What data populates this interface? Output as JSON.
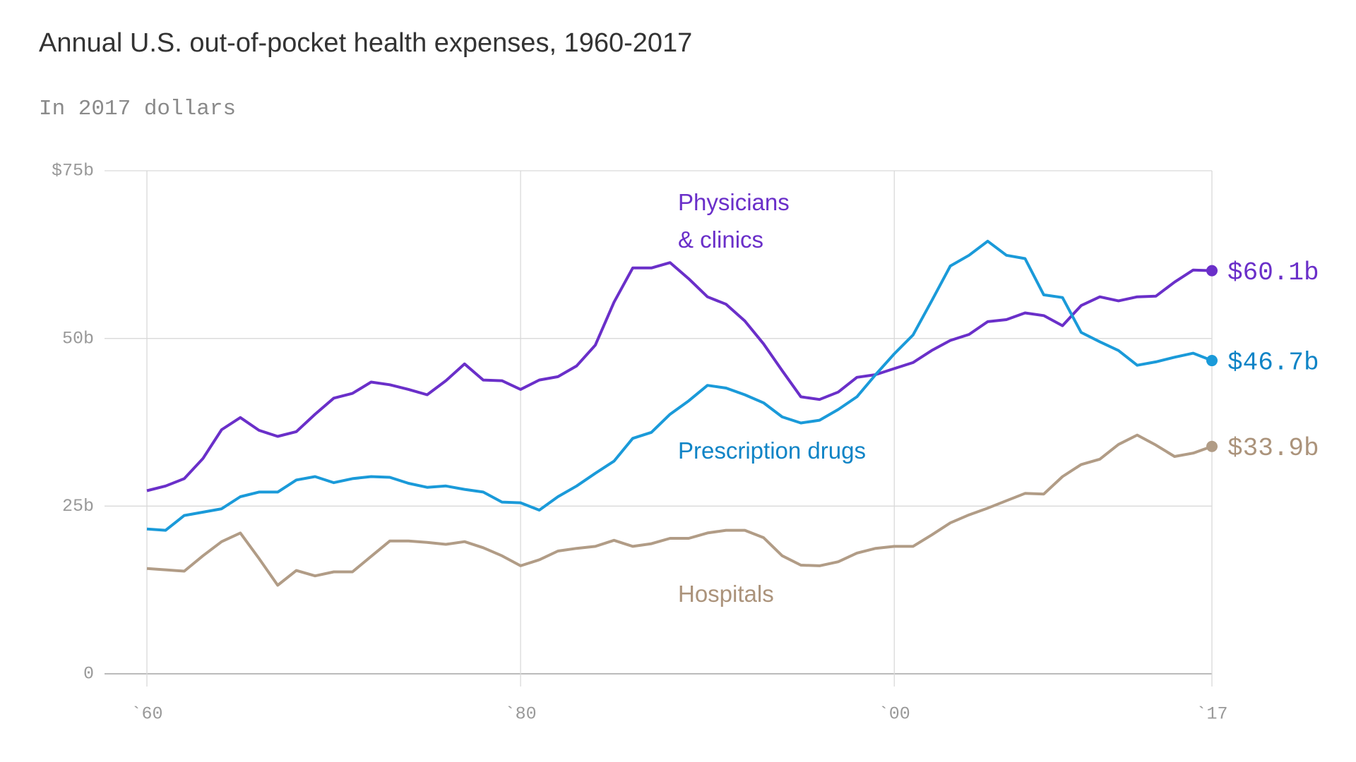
{
  "chart_data": {
    "type": "line",
    "title": "Annual U.S. out-of-pocket health expenses, 1960-2017",
    "subtitle": "In 2017 dollars",
    "x": [
      1960,
      1961,
      1962,
      1963,
      1964,
      1965,
      1966,
      1967,
      1968,
      1969,
      1970,
      1971,
      1972,
      1973,
      1974,
      1975,
      1976,
      1977,
      1978,
      1979,
      1980,
      1981,
      1982,
      1983,
      1984,
      1985,
      1986,
      1987,
      1988,
      1989,
      1990,
      1991,
      1992,
      1993,
      1994,
      1995,
      1996,
      1997,
      1998,
      1999,
      2000,
      2001,
      2002,
      2003,
      2004,
      2005,
      2006,
      2007,
      2008,
      2009,
      2010,
      2011,
      2012,
      2013,
      2014,
      2015,
      2016,
      2017
    ],
    "xlim": [
      1960,
      2017
    ],
    "xticks": [
      {
        "value": 1960,
        "label": "`60"
      },
      {
        "value": 1980,
        "label": "`80"
      },
      {
        "value": 2000,
        "label": "`00"
      },
      {
        "value": 2017,
        "label": "`17"
      }
    ],
    "ylim": [
      0,
      75
    ],
    "yticks": [
      0,
      {
        "value": 25,
        "label": "25b"
      },
      {
        "value": 50,
        "label": "50b"
      },
      {
        "value": 75,
        "label": "$75b"
      }
    ],
    "grid": true,
    "series": [
      {
        "name": "Physicians & clinics",
        "color": "#6a2fc9",
        "label_color": "#6a2fc9",
        "end_label": "$60.1b",
        "values": [
          27.3,
          28.0,
          29.1,
          32.1,
          36.4,
          38.2,
          36.3,
          35.4,
          36.1,
          38.7,
          41.1,
          41.8,
          43.5,
          43.1,
          42.4,
          41.6,
          43.7,
          46.2,
          43.8,
          43.7,
          42.4,
          43.8,
          44.3,
          45.9,
          49.0,
          55.4,
          60.5,
          60.5,
          61.3,
          58.9,
          56.2,
          55.1,
          52.6,
          49.2,
          45.2,
          41.3,
          40.9,
          42.0,
          44.2,
          44.6,
          45.5,
          46.4,
          48.2,
          49.7,
          50.6,
          52.5,
          52.8,
          53.8,
          53.4,
          51.9,
          54.9,
          56.2,
          55.6,
          56.2,
          56.3,
          58.4,
          60.2,
          60.1
        ]
      },
      {
        "name": "Prescription drugs",
        "color": "#1a9ad9",
        "label_color": "#0f84c6",
        "end_label": "$46.7b",
        "values": [
          21.6,
          21.4,
          23.6,
          24.1,
          24.6,
          26.4,
          27.1,
          27.1,
          28.9,
          29.4,
          28.5,
          29.1,
          29.4,
          29.3,
          28.4,
          27.8,
          28.0,
          27.5,
          27.1,
          25.6,
          25.5,
          24.4,
          26.4,
          28.0,
          29.9,
          31.7,
          35.1,
          36.0,
          38.7,
          40.7,
          43.0,
          42.6,
          41.6,
          40.4,
          38.3,
          37.4,
          37.8,
          39.4,
          41.3,
          44.6,
          47.7,
          50.5,
          55.6,
          60.8,
          62.4,
          64.5,
          62.4,
          61.9,
          56.5,
          56.1,
          50.9,
          49.5,
          48.2,
          46.0,
          46.5,
          47.2,
          47.8,
          46.7
        ]
      },
      {
        "name": "Hospitals",
        "color": "#b19c86",
        "label_color": "#ab937b",
        "end_label": "$33.9b",
        "values": [
          15.7,
          15.5,
          15.3,
          17.6,
          19.7,
          21.0,
          17.2,
          13.2,
          15.4,
          14.6,
          15.2,
          15.2,
          17.5,
          19.8,
          19.8,
          19.6,
          19.3,
          19.7,
          18.8,
          17.6,
          16.1,
          17.0,
          18.3,
          18.7,
          19.0,
          19.9,
          19.0,
          19.4,
          20.2,
          20.2,
          21.0,
          21.4,
          21.4,
          20.3,
          17.6,
          16.2,
          16.1,
          16.7,
          18.0,
          18.7,
          19.0,
          19.0,
          20.7,
          22.5,
          23.7,
          24.7,
          25.8,
          26.9,
          26.8,
          29.4,
          31.2,
          32.0,
          34.2,
          35.6,
          34.1,
          32.4,
          32.9,
          33.9
        ]
      }
    ]
  }
}
